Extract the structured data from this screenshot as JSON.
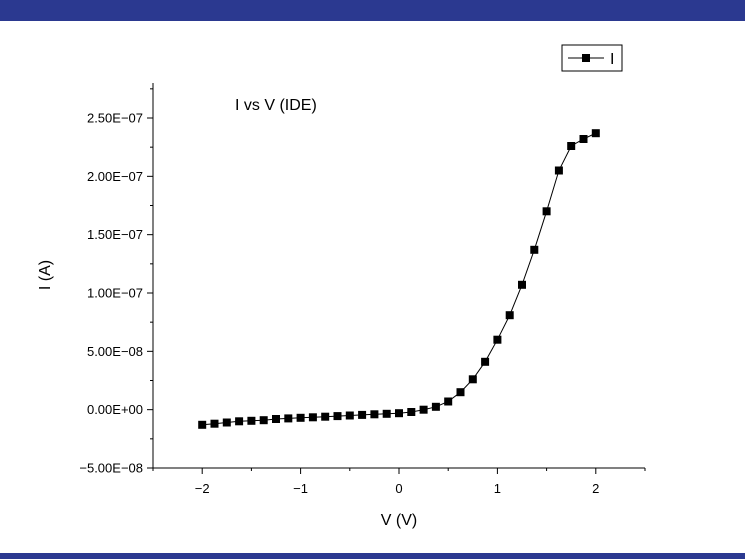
{
  "colors": {
    "band": "#2b3990",
    "series": "#000000",
    "background": "#ffffff"
  },
  "chart_data": {
    "type": "line",
    "annotation": "I vs V (IDE)",
    "xlabel": "V (V)",
    "ylabel": "I (A)",
    "xlim": [
      -2.5,
      2.5
    ],
    "ylim": [
      -5e-08,
      2.8e-07
    ],
    "x_ticks": [
      -2,
      -1,
      0,
      1,
      2
    ],
    "x_tick_labels": [
      "−2",
      "−1",
      "0",
      "1",
      "2"
    ],
    "y_ticks": [
      -5e-08,
      0,
      5e-08,
      1e-07,
      1.5e-07,
      2e-07,
      2.5e-07
    ],
    "y_tick_labels": [
      "−5.00E−08",
      "0.00E+00",
      "5.00E−08",
      "1.00E−07",
      "1.50E−07",
      "2.00E−07",
      "2.50E−07"
    ],
    "grid": false,
    "legend_position": "top-right",
    "marker": "square",
    "series": [
      {
        "name": "I",
        "x": [
          -2.0,
          -1.875,
          -1.75,
          -1.625,
          -1.5,
          -1.375,
          -1.25,
          -1.125,
          -1.0,
          -0.875,
          -0.75,
          -0.625,
          -0.5,
          -0.375,
          -0.25,
          -0.125,
          0.0,
          0.125,
          0.25,
          0.375,
          0.5,
          0.625,
          0.75,
          0.875,
          1.0,
          1.125,
          1.25,
          1.375,
          1.5,
          1.625,
          1.75,
          1.875,
          2.0
        ],
        "values": [
          -1.3e-08,
          -1.2e-08,
          -1.1e-08,
          -1e-08,
          -9.5e-09,
          -9e-09,
          -8e-09,
          -7.5e-09,
          -7e-09,
          -6.5e-09,
          -6e-09,
          -5.5e-09,
          -5e-09,
          -4.5e-09,
          -4e-09,
          -3.5e-09,
          -3e-09,
          -2e-09,
          0.0,
          2.5e-09,
          7e-09,
          1.5e-08,
          2.6e-08,
          4.1e-08,
          6e-08,
          8.1e-08,
          1.07e-07,
          1.37e-07,
          1.7e-07,
          2.05e-07,
          2.26e-07,
          2.32e-07,
          2.37e-07
        ]
      }
    ]
  }
}
